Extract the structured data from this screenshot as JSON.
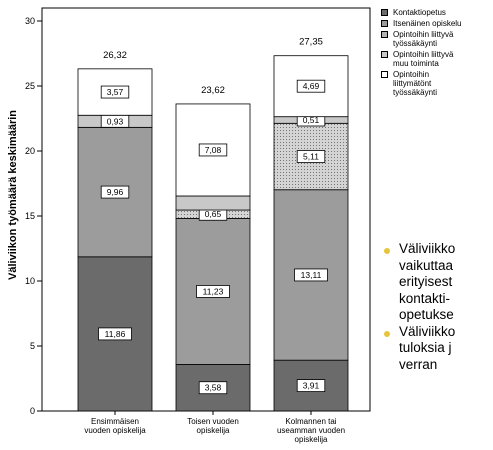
{
  "chart_data": {
    "type": "bar",
    "stacked": true,
    "ylabel": "Väliviikon työmäärä keskimäärin",
    "ylim": [
      0,
      31
    ],
    "yticks": [
      0,
      5,
      10,
      15,
      20,
      25,
      30
    ],
    "categories": [
      "Ensimmäisen\nvuoden opiskelija",
      "Toisen vuoden\nopiskelija",
      "Kolmannen tai\nuseamman vuoden\nopiskelija"
    ],
    "totals": [
      "26,32",
      "23,62",
      "27,35"
    ],
    "legend_position": "top-right",
    "series": [
      {
        "name": "Kontaktiopetus",
        "color": "#6b6b6b",
        "values": [
          11.86,
          3.58,
          3.91
        ],
        "labels": [
          "11,86",
          "3,58",
          "3,91"
        ]
      },
      {
        "name": "Itsenäinen opiskelu",
        "color": "#9c9c9c",
        "values": [
          9.96,
          11.23,
          13.11
        ],
        "labels": [
          "9,96",
          "11,23",
          "13,11"
        ]
      },
      {
        "name": "Opintoihin liittyvä\ntyössäkäynti",
        "color": "#d4d4d4",
        "pattern": "dots",
        "values": [
          0,
          0.65,
          5.11
        ],
        "labels": [
          "",
          "0,65",
          "5,11"
        ]
      },
      {
        "name": "Opintoihin liittyvä\nmuu toiminta",
        "color": "#c8c8c8",
        "values": [
          0.93,
          1.08,
          0.51
        ],
        "labels": [
          "0,93",
          "",
          "0,51"
        ]
      },
      {
        "name": "Opintoihin\nliittymätönt\ntyössäkäynti",
        "color": "#ffffff",
        "values": [
          3.57,
          7.08,
          4.69
        ],
        "labels": [
          "3,57",
          "7,08",
          "4,69"
        ]
      }
    ]
  },
  "bullets": [
    "Väliviikko\nvaikuttaa\nerityisest\nkontakti-\nopetukse",
    "Väliviikko\ntuloksia j\nverran"
  ]
}
